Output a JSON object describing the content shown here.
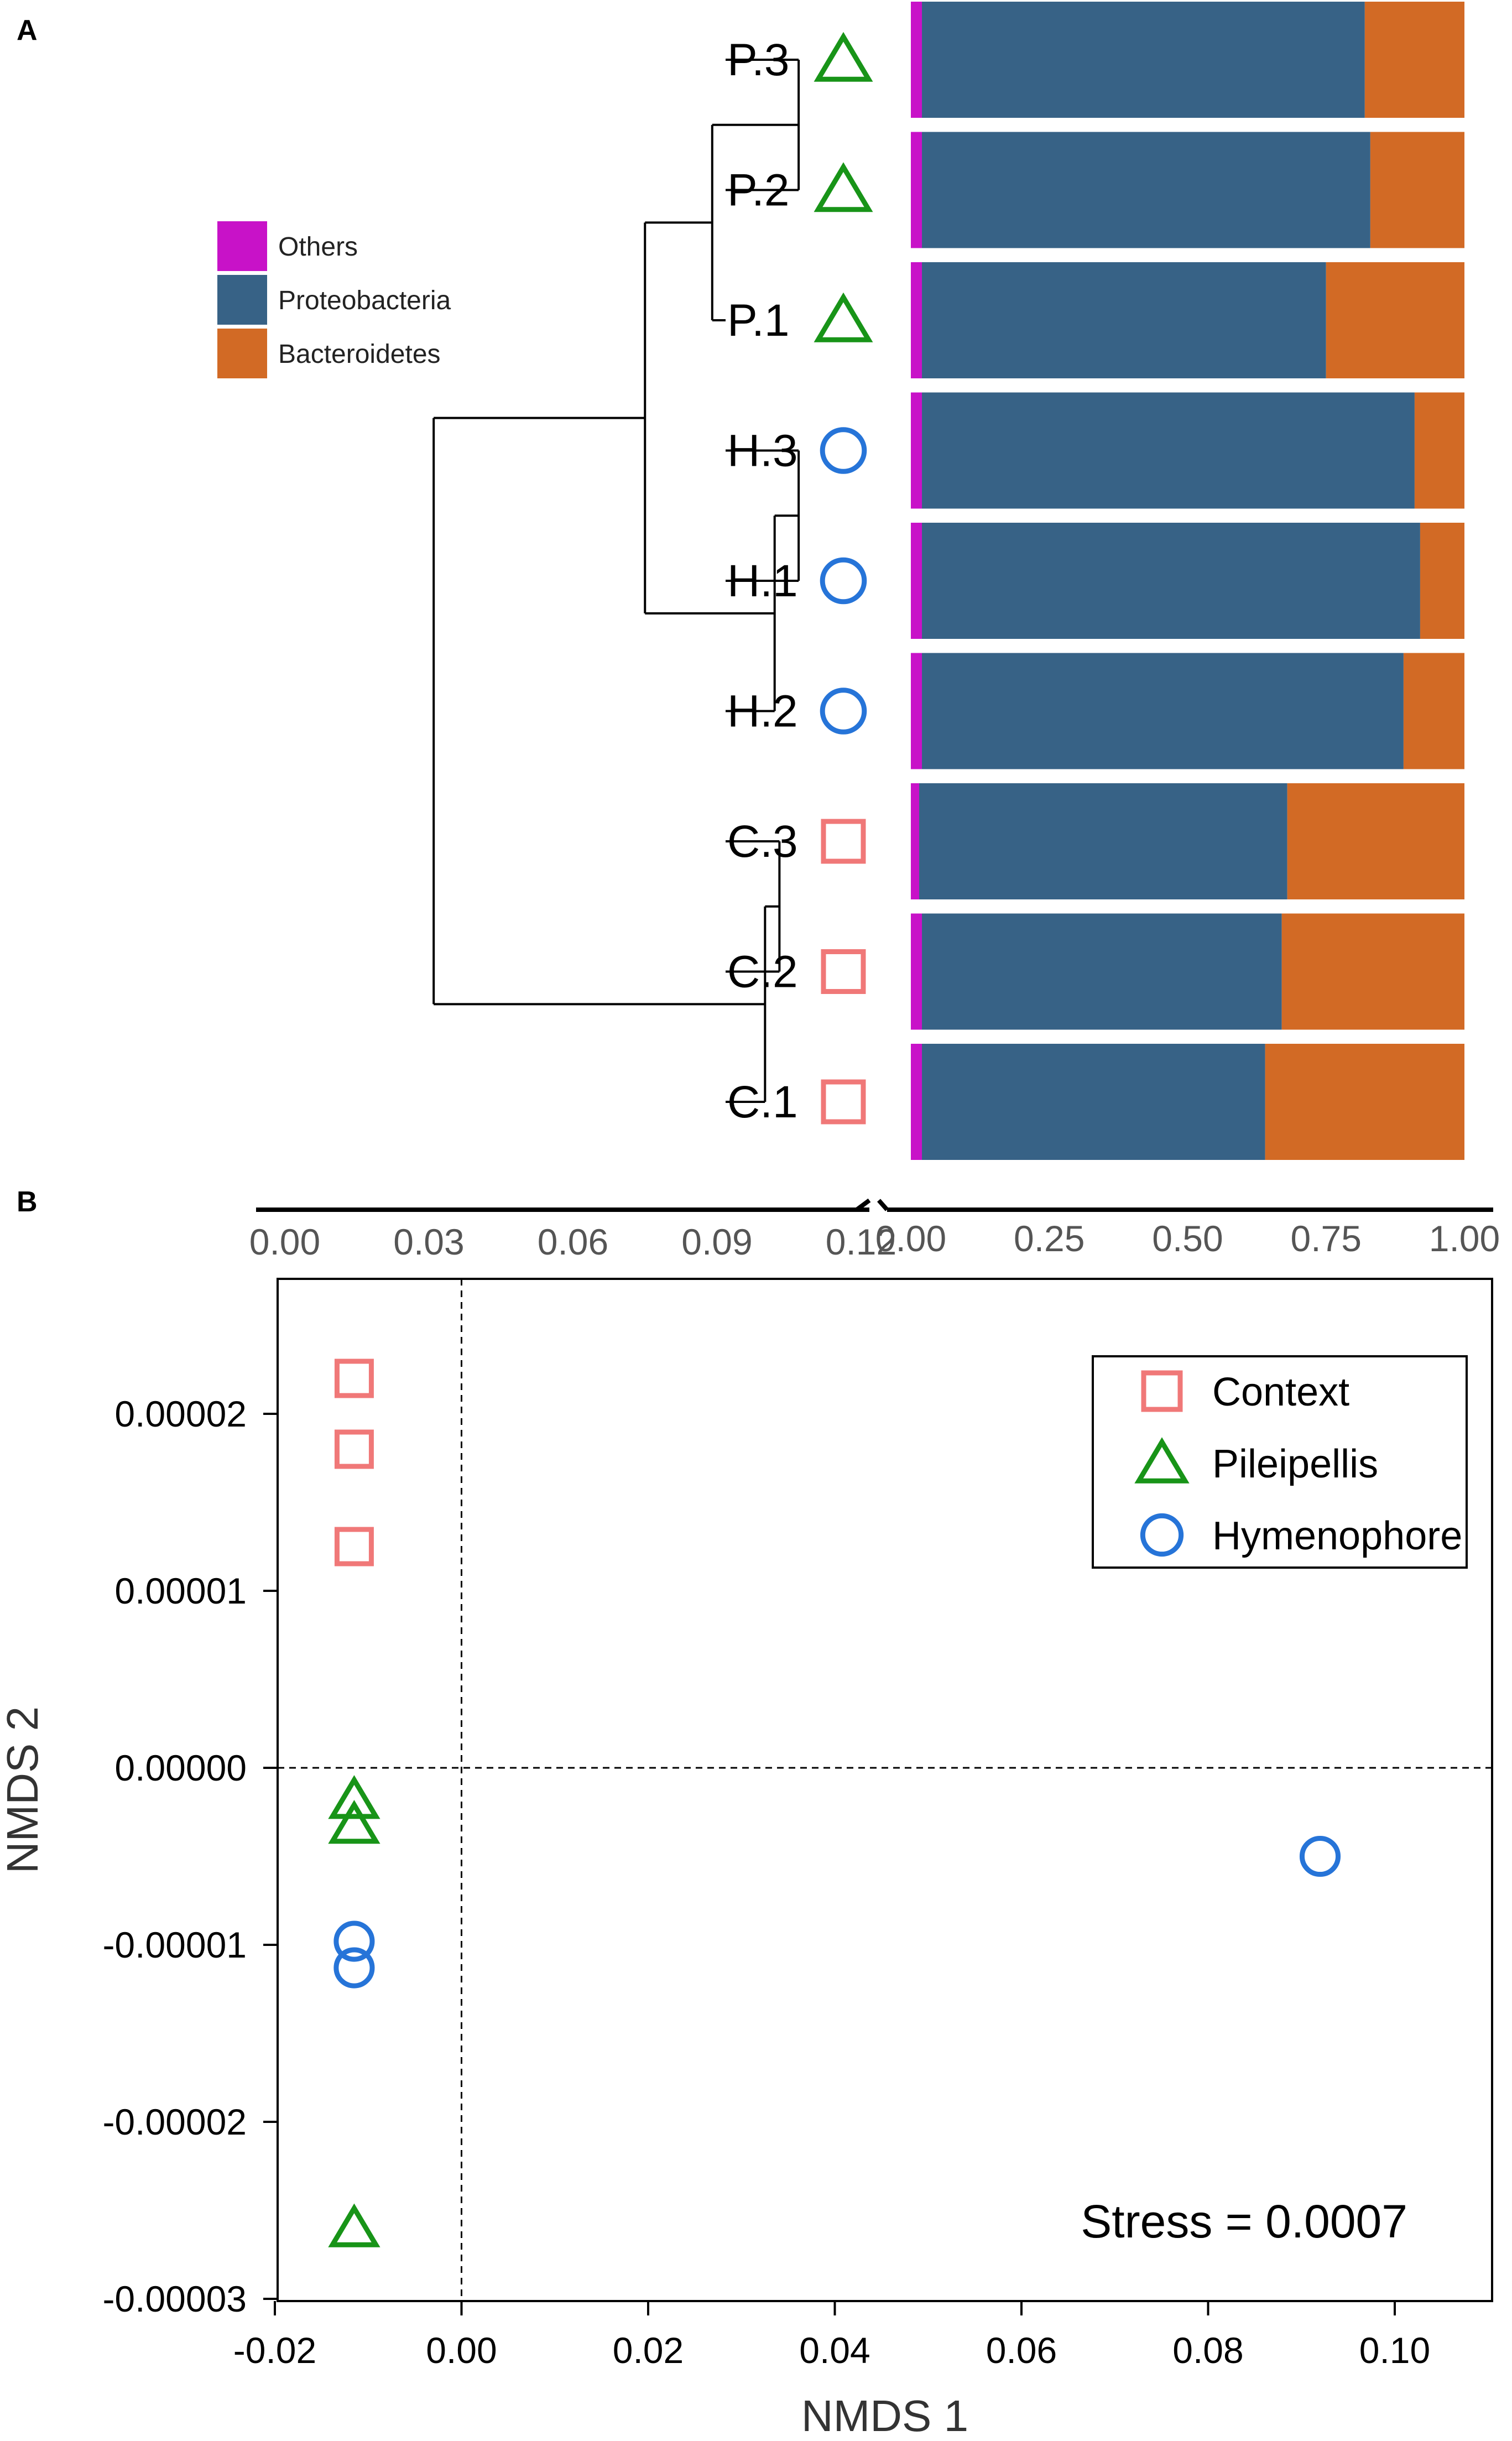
{
  "colors": {
    "others": "#c812c8",
    "proteobacteria": "#376286",
    "bacteroidetes": "#d26a25",
    "context": "#f07878",
    "pileipellis": "#189418",
    "hymenophore": "#2674d8"
  },
  "chart_data": [
    {
      "type": "bar",
      "panel": "A",
      "title": "",
      "categories": [
        "P.3",
        "P.2",
        "P.1",
        "H.3",
        "H.1",
        "H.2",
        "C.3",
        "C.2",
        "C.1"
      ],
      "groups": [
        "pileipellis",
        "pileipellis",
        "pileipellis",
        "hymenophore",
        "hymenophore",
        "hymenophore",
        "context",
        "context",
        "context"
      ],
      "series": [
        {
          "name": "Others",
          "color_key": "others",
          "values": [
            0.02,
            0.02,
            0.02,
            0.02,
            0.02,
            0.02,
            0.015,
            0.02,
            0.02
          ]
        },
        {
          "name": "Proteobacteria",
          "color_key": "proteobacteria",
          "values": [
            0.8,
            0.81,
            0.73,
            0.89,
            0.9,
            0.87,
            0.665,
            0.65,
            0.62
          ]
        },
        {
          "name": "Bacteroidetes",
          "color_key": "bacteroidetes",
          "values": [
            0.18,
            0.17,
            0.25,
            0.09,
            0.08,
            0.11,
            0.32,
            0.33,
            0.36
          ]
        }
      ],
      "legend": [
        "Others",
        "Proteobacteria",
        "Bacteroidetes"
      ],
      "bar_axis": {
        "ticks": [
          "0.00",
          "0.25",
          "0.50",
          "0.75",
          "1.00"
        ],
        "range": [
          0,
          1
        ]
      },
      "dendrogram": {
        "axis": {
          "ticks": [
            "0.00",
            "0.03",
            "0.06",
            "0.09",
            "0.12"
          ],
          "range": [
            0,
            0.12
          ]
        },
        "merges": [
          {
            "id": "p32",
            "children": [
              "P.3",
              "P.2"
            ],
            "height": 0.107
          },
          {
            "id": "p",
            "children": [
              "p32",
              "P.1"
            ],
            "height": 0.089
          },
          {
            "id": "h31",
            "children": [
              "H.3",
              "H.1"
            ],
            "height": 0.107
          },
          {
            "id": "h",
            "children": [
              "h31",
              "H.2"
            ],
            "height": 0.102
          },
          {
            "id": "ph",
            "children": [
              "p",
              "h"
            ],
            "height": 0.075
          },
          {
            "id": "c32",
            "children": [
              "C.3",
              "C.2"
            ],
            "height": 0.103
          },
          {
            "id": "c",
            "children": [
              "c32",
              "C.1"
            ],
            "height": 0.1
          },
          {
            "id": "root",
            "children": [
              "ph",
              "c"
            ],
            "height": 0.031
          }
        ]
      }
    },
    {
      "type": "scatter",
      "panel": "B",
      "title": "",
      "xlabel": "NMDS 1",
      "ylabel": "NMDS 2",
      "xlim": [
        -0.02,
        0.11
      ],
      "ylim": [
        -3e-05,
        2.5e-05
      ],
      "x_ticks": [
        "-0.02",
        "0.00",
        "0.02",
        "0.04",
        "0.06",
        "0.08",
        "0.10"
      ],
      "y_ticks": [
        "0.00002",
        "0.00001",
        "0.00000",
        "-0.00001",
        "-0.00002",
        "-0.00003"
      ],
      "reference_lines": {
        "x": 0,
        "y": 0
      },
      "series": [
        {
          "name": "Context",
          "marker": "square",
          "color_key": "context",
          "x": [
            -0.0115,
            -0.0115,
            -0.0115
          ],
          "y": [
            2.2e-05,
            1.8e-05,
            1.25e-05
          ]
        },
        {
          "name": "Pileipellis",
          "marker": "triangle",
          "color_key": "pileipellis",
          "x": [
            -0.0115,
            -0.0115,
            -0.0115
          ],
          "y": [
            -1.8e-06,
            -3.2e-06,
            -2.6e-05
          ]
        },
        {
          "name": "Hymenophore",
          "marker": "circle",
          "color_key": "hymenophore",
          "x": [
            -0.0115,
            -0.0115,
            0.092
          ],
          "y": [
            -9.8e-06,
            -1.13e-05,
            -5e-06
          ]
        }
      ],
      "legend": [
        "Context",
        "Pileipellis",
        "Hymenophore"
      ],
      "legend_position": "top-right",
      "annotation": "Stress = 0.0007"
    }
  ]
}
